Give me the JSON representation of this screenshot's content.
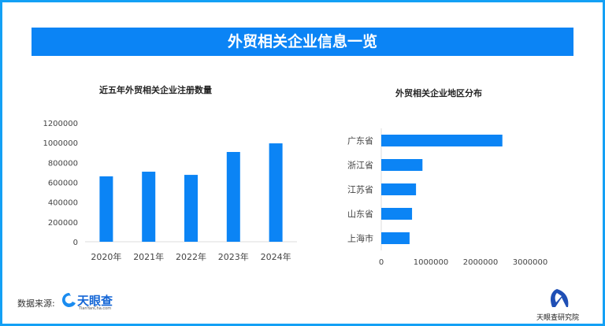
{
  "header": {
    "title": "外贸相关企业信息一览"
  },
  "footer": {
    "source_label": "数据来源:",
    "source_logo": "天眼查",
    "source_logo_sub": "TianYanCha.com",
    "institute": "天眼查研究院"
  },
  "colors": {
    "bar": "#0b84f5",
    "banner": "#0b84f5",
    "frame": "#13a0f5"
  },
  "chart_data": [
    {
      "type": "bar",
      "title": "近五年外贸相关企业注册数量",
      "categories": [
        "2020年",
        "2021年",
        "2022年",
        "2023年",
        "2024年"
      ],
      "values": [
        660000,
        707000,
        675000,
        906000,
        993000
      ],
      "ylim": [
        0,
        1200000
      ],
      "yticks": [
        "0",
        "200000",
        "400000",
        "600000",
        "800000",
        "1000000",
        "1200000"
      ],
      "grid": false
    },
    {
      "type": "bar",
      "orientation": "horizontal",
      "title": "外贸相关企业地区分布",
      "categories": [
        "广东省",
        "浙江省",
        "江苏省",
        "山东省",
        "上海市"
      ],
      "values": [
        2440000,
        830000,
        700000,
        620000,
        570000
      ],
      "xlim": [
        0,
        3000000
      ],
      "xticks": [
        "0",
        "1000000",
        "2000000",
        "3000000"
      ],
      "grid": false
    }
  ]
}
